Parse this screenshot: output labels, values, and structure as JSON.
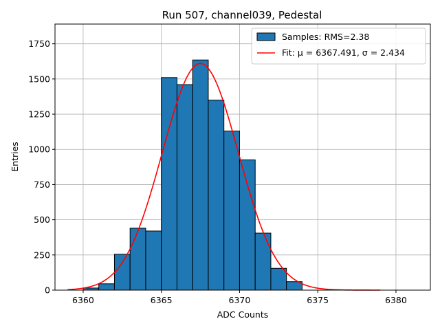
{
  "chart_data": {
    "type": "bar",
    "title": "Run 507, channel039, Pedestal",
    "xlabel": "ADC Counts",
    "ylabel": "Entries",
    "xlim": [
      6358.2,
      6382.2
    ],
    "ylim": [
      0,
      1890
    ],
    "xticks": [
      6360,
      6365,
      6370,
      6375,
      6380
    ],
    "yticks": [
      0,
      250,
      500,
      750,
      1000,
      1250,
      1500,
      1750
    ],
    "grid": true,
    "bar_color": "#1f77b4",
    "bar_edge_color": "#000000",
    "fit_color": "#ff0000",
    "histogram": {
      "name": "Samples: RMS=2.38",
      "bin_edges": [
        6360,
        6361,
        6362,
        6363,
        6364,
        6365,
        6366,
        6367,
        6368,
        6369,
        6370,
        6371,
        6372,
        6373,
        6374
      ],
      "counts": [
        15,
        45,
        255,
        440,
        420,
        1510,
        1460,
        1635,
        1350,
        1130,
        925,
        405,
        155,
        60
      ]
    },
    "fit": {
      "name": "Fit: μ = 6367.491, σ = 2.434",
      "mu": 6367.491,
      "sigma": 2.434,
      "amplitude": 1610,
      "x_range": [
        6359,
        6379
      ]
    },
    "legend_location": "upper right"
  }
}
